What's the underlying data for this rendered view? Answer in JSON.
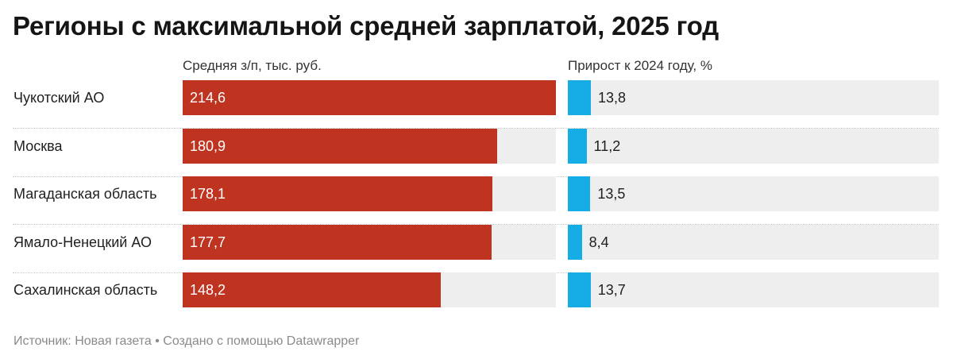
{
  "title": "Регионы с максимальной средней зарплатой, 2025 год",
  "footer": {
    "source": "Источник: Новая газета",
    "separator": "•",
    "credit": "Создано с помощью Datawrapper"
  },
  "chart_data": {
    "type": "bar",
    "orientation": "horizontal",
    "title": "Регионы с максимальной средней зарплатой, 2025 год",
    "categories": [
      "Чукотский АО",
      "Москва",
      "Магаданская область",
      "Ямало-Ненецкий АО",
      "Сахалинская область"
    ],
    "series": [
      {
        "name": "Средняя з/п, тыс. руб.",
        "values": [
          214.6,
          180.9,
          178.1,
          177.7,
          148.2
        ],
        "labels": [
          "214,6",
          "180,9",
          "178,1",
          "177,7",
          "148,2"
        ],
        "color": "#bf3420",
        "xlim": [
          0,
          214.6
        ]
      },
      {
        "name": "Прирост к 2024 году, %",
        "values": [
          13.8,
          11.2,
          13.5,
          8.4,
          13.7
        ],
        "labels": [
          "13,8",
          "11,2",
          "13,5",
          "8,4",
          "13,7"
        ],
        "color": "#16ade6",
        "xlim": [
          0,
          100
        ]
      }
    ],
    "track_color": "#eeeeee",
    "grid": false,
    "legend": "none"
  }
}
